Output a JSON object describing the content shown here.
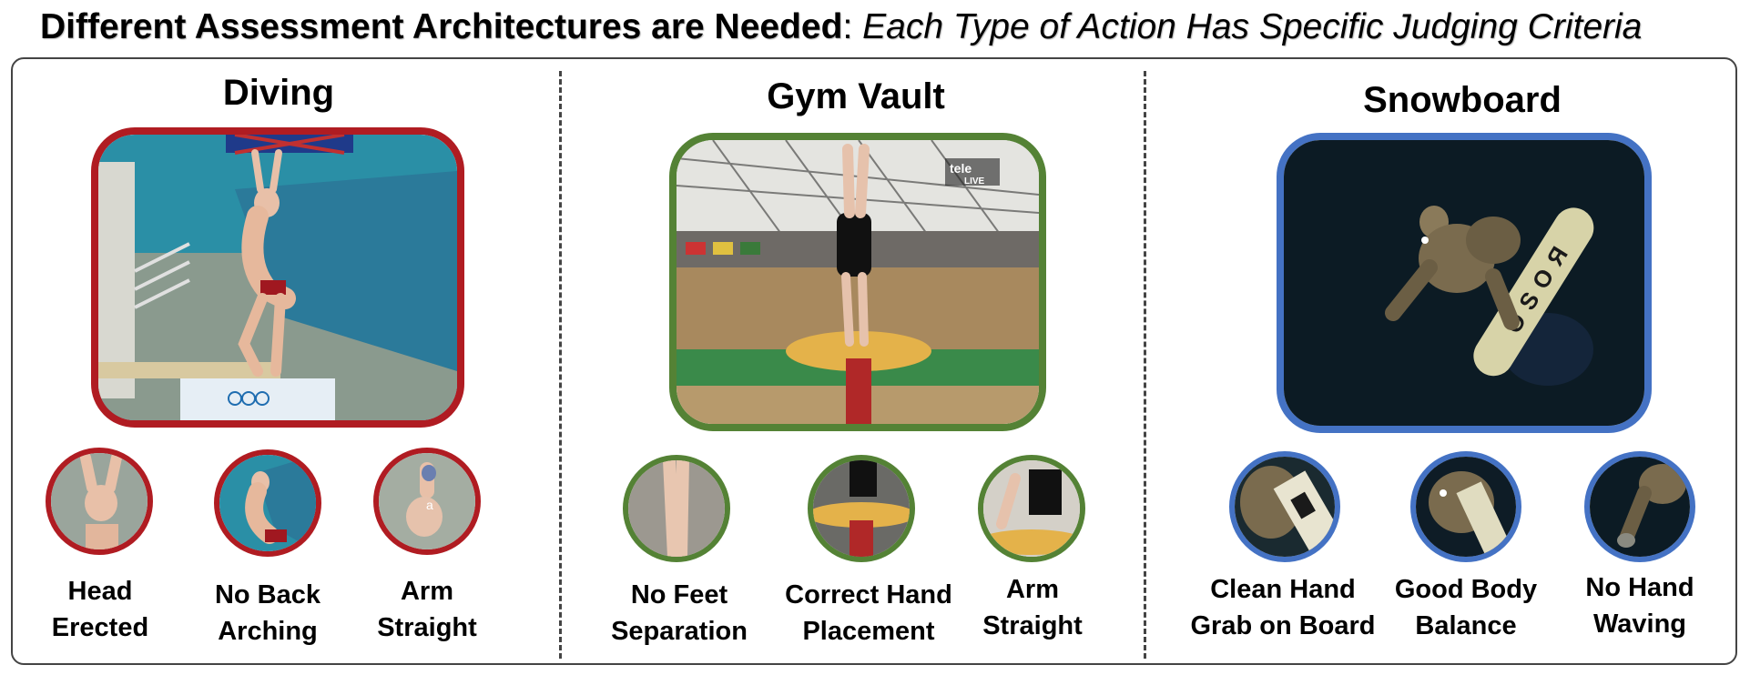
{
  "title": {
    "bold": "Different Assessment Architectures are Needed",
    "separator": ":",
    "italic": "Each Type of Action Has Specific Judging Criteria"
  },
  "sections": [
    {
      "name": "Diving",
      "border_color": "#b01c22",
      "criteria": [
        {
          "line1": "Head",
          "line2": "Erected"
        },
        {
          "line1": "No Back",
          "line2": "Arching"
        },
        {
          "line1": "Arm",
          "line2": "Straight"
        }
      ]
    },
    {
      "name": "Gym Vault",
      "border_color": "#548235",
      "criteria": [
        {
          "line1": "No Feet",
          "line2": "Separation"
        },
        {
          "line1": "Correct Hand",
          "line2": "Placement"
        },
        {
          "line1": "Arm",
          "line2": "Straight"
        }
      ]
    },
    {
      "name": "Snowboard",
      "border_color": "#4472c4",
      "criteria": [
        {
          "line1": "Clean Hand",
          "line2": "Grab on Board"
        },
        {
          "line1": "Good Body",
          "line2": "Balance"
        },
        {
          "line1": "No Hand",
          "line2": "Waving"
        }
      ]
    }
  ],
  "image_overlays": {
    "vault_broadcast_logo": "tele",
    "vault_broadcast_live": "LIVE",
    "snowboard_board_text": "OSOЯ",
    "diving_thumb_letter": "a"
  }
}
